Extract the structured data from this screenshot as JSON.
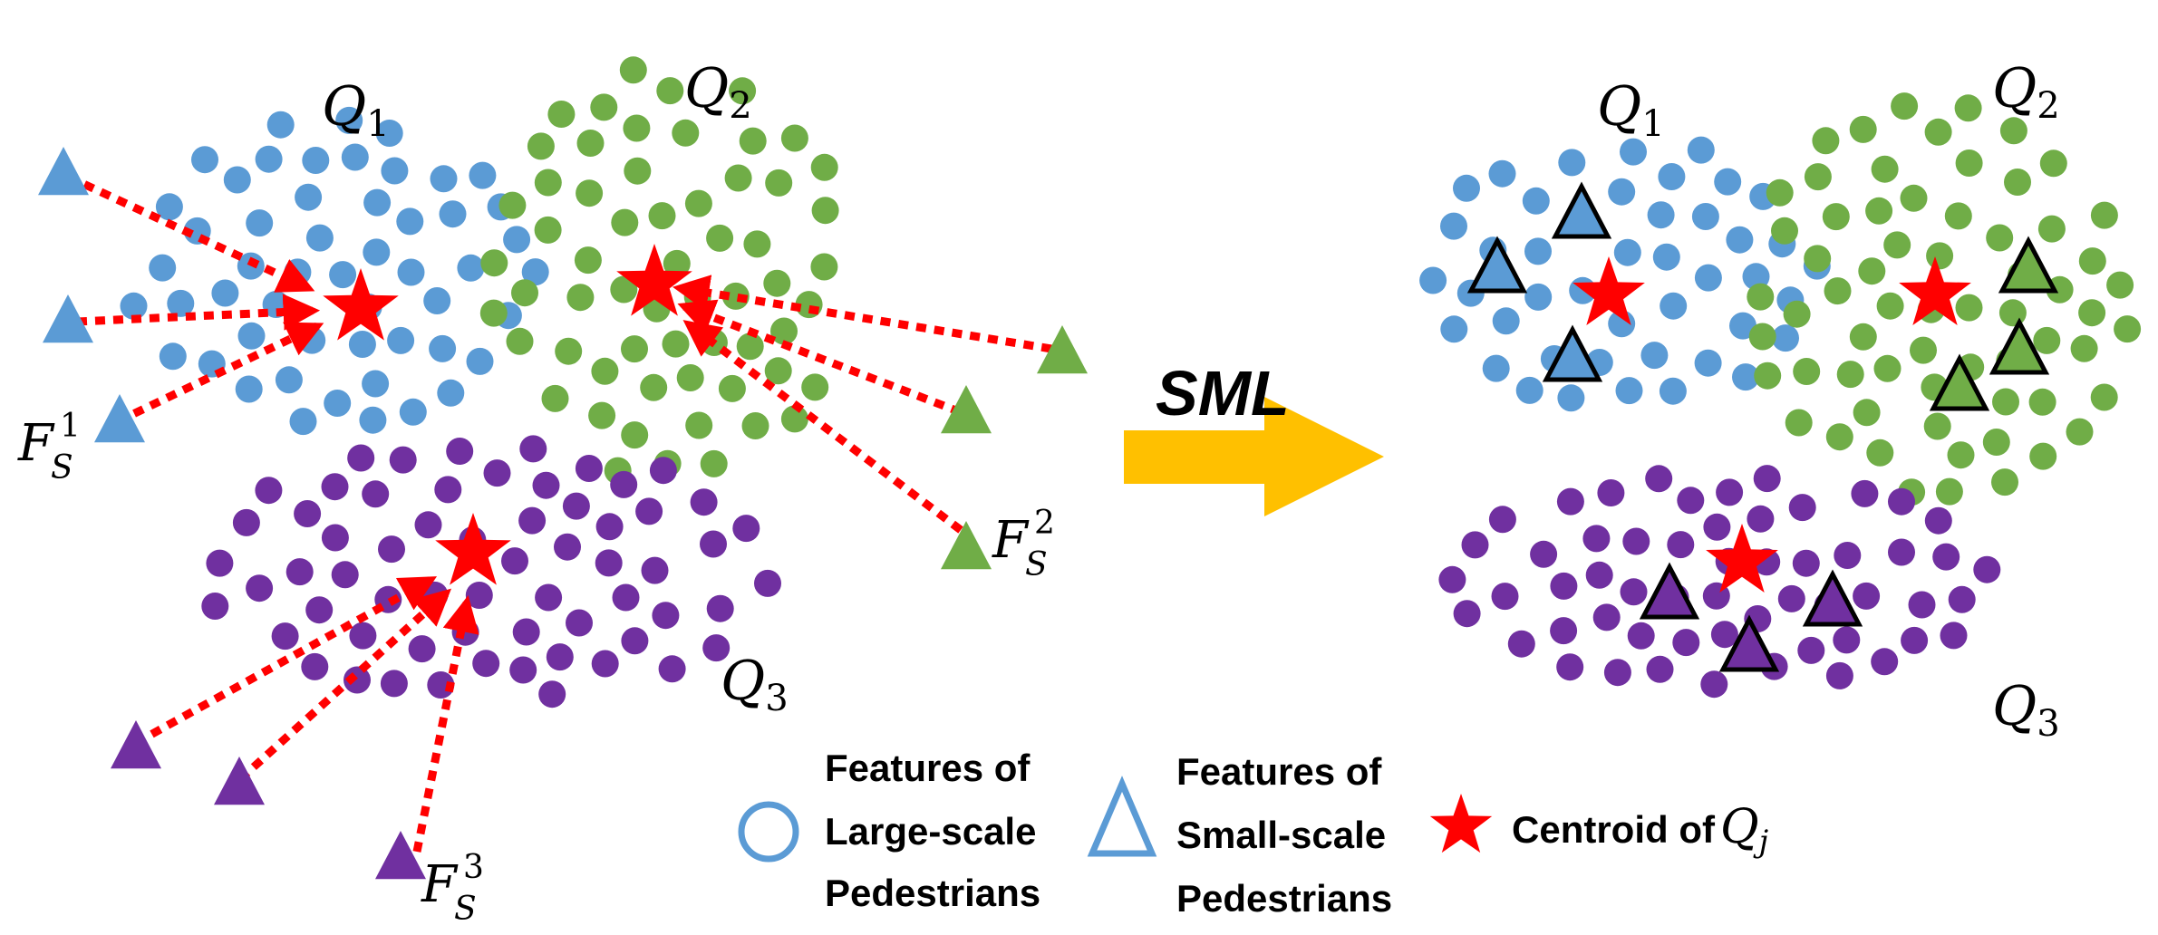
{
  "colors": {
    "blue": "#5b9bd5",
    "green": "#70ad47",
    "purple": "#7030a0",
    "red": "#ff0000",
    "arrow": "#ffc000",
    "text": "#000000"
  },
  "left": {
    "cluster_labels": [
      {
        "base": "Q",
        "sub": "1"
      },
      {
        "base": "Q",
        "sub": "2"
      },
      {
        "base": "Q",
        "sub": "3"
      }
    ],
    "small_scale_labels": [
      {
        "base": "F",
        "sub": "S",
        "sup": "1"
      },
      {
        "base": "F",
        "sub": "S",
        "sup": "2"
      },
      {
        "base": "F",
        "sub": "S",
        "sup": "3"
      }
    ]
  },
  "right": {
    "cluster_labels": [
      {
        "base": "Q",
        "sub": "1"
      },
      {
        "base": "Q",
        "sub": "2"
      },
      {
        "base": "Q",
        "sub": "3"
      }
    ]
  },
  "transition": {
    "label": "SML"
  },
  "legend": {
    "circle": {
      "line1": "Features of",
      "line2": "Large-scale",
      "line3": "Pedestrians",
      "icon": "circle-icon"
    },
    "triangle": {
      "line1": "Features of",
      "line2": "Small-scale",
      "line3": "Pedestrians",
      "icon": "triangle-icon"
    },
    "star": {
      "text": "Centroid of",
      "math_base": "Q",
      "math_sub": "j",
      "icon": "star-icon"
    }
  }
}
